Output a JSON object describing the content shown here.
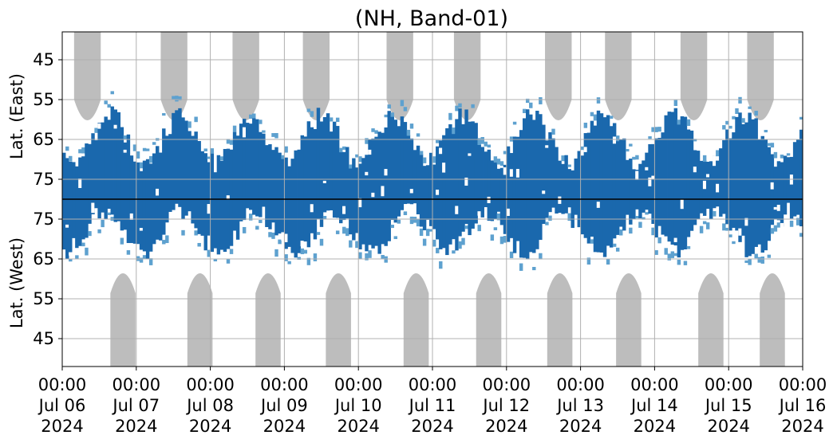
{
  "chart_data": {
    "type": "heatmap",
    "title": "(NH, Band-01)",
    "ylabel_top": "Lat. (East)",
    "ylabel_bottom": "Lat. (West)",
    "grid": true,
    "colors": {
      "coverage_dark": "#1a68ad",
      "coverage_light": "#5ea1cf",
      "night_mask": "#bdbdbd",
      "grid": "#b0b0b0",
      "axis": "#000000",
      "divider": "#000000"
    },
    "x_ticks": [
      {
        "time": "00:00",
        "date": "Jul 06",
        "year": "2024"
      },
      {
        "time": "00:00",
        "date": "Jul 07",
        "year": "2024"
      },
      {
        "time": "00:00",
        "date": "Jul 08",
        "year": "2024"
      },
      {
        "time": "00:00",
        "date": "Jul 09",
        "year": "2024"
      },
      {
        "time": "00:00",
        "date": "Jul 10",
        "year": "2024"
      },
      {
        "time": "00:00",
        "date": "Jul 11",
        "year": "2024"
      },
      {
        "time": "00:00",
        "date": "Jul 12",
        "year": "2024"
      },
      {
        "time": "00:00",
        "date": "Jul 13",
        "year": "2024"
      },
      {
        "time": "00:00",
        "date": "Jul 14",
        "year": "2024"
      },
      {
        "time": "00:00",
        "date": "Jul 15",
        "year": "2024"
      },
      {
        "time": "00:00",
        "date": "Jul 16",
        "year": "2024"
      }
    ],
    "xlim": [
      "2024-07-06 00:00",
      "2024-07-16 00:00"
    ],
    "y_ticks_east": [
      "45",
      "55",
      "65",
      "75"
    ],
    "y_ticks_west": [
      "75",
      "65",
      "55",
      "45"
    ],
    "y_range_each_side": [
      38,
      80
    ]
  }
}
